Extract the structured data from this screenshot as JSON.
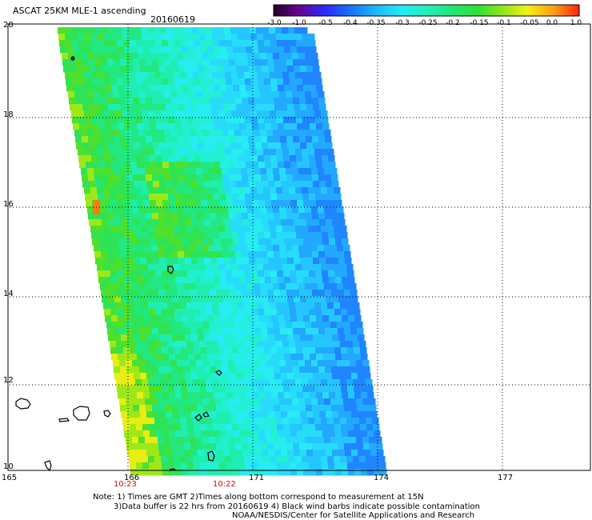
{
  "header": {
    "title": "ASCAT 25KM MLE-1 ascending",
    "date": "20160619"
  },
  "colorbar": {
    "labels": [
      "-3.0",
      "-1.0",
      "-0.5",
      "-0.4",
      "-0.35",
      "-0.3",
      "-0.25",
      "-0.2",
      "-0.15",
      "-0.1",
      "-0.05",
      "0.0",
      "1.0"
    ],
    "colors": [
      "#2b0030",
      "#5a00a0",
      "#2a33ff",
      "#1c8cff",
      "#24c8ff",
      "#27f0ea",
      "#21f0b0",
      "#26e66a",
      "#39e02a",
      "#9ee817",
      "#f5f216",
      "#ff9a10",
      "#ff2a10"
    ]
  },
  "map": {
    "lat_labels": [
      "20",
      "18",
      "16",
      "14",
      "12",
      "10"
    ],
    "lon_labels": [
      "165",
      "166",
      "171",
      "174",
      "177"
    ],
    "times": [
      "10:23",
      "10:22"
    ]
  },
  "notes": {
    "line1": "Note: 1) Times are GMT 2)Times along bottom correspond to measurement at 15N",
    "line2": "3)Data buffer is 22 hrs from 20160619 4) Black wind barbs indicate possible contamination",
    "line3": "NOAA/NESDIS/Center for Satellite Applications and Research"
  }
}
